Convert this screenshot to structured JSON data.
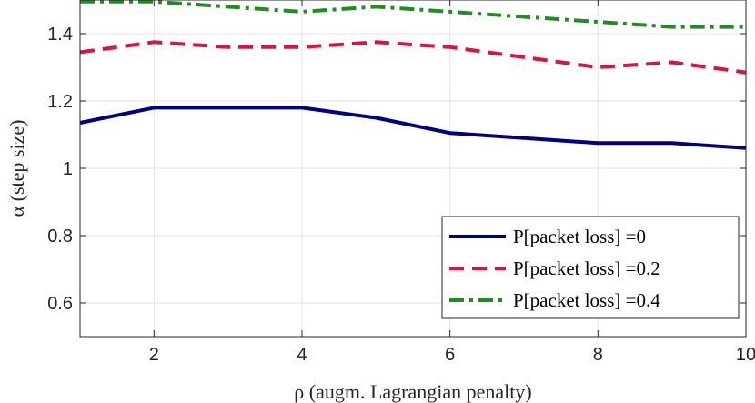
{
  "chart_data": {
    "type": "line",
    "title": "",
    "xlabel": "ρ (augm. Lagrangian penalty)",
    "ylabel": "α (step size)",
    "xlim": [
      1,
      10
    ],
    "ylim": [
      0.5,
      1.5
    ],
    "x_ticks": [
      2,
      4,
      6,
      8,
      10
    ],
    "x_tick_labels": [
      "2",
      "4",
      "6",
      "8",
      "10"
    ],
    "y_ticks": [
      0.6,
      0.8,
      1.0,
      1.2,
      1.4
    ],
    "y_tick_labels": [
      "0.6",
      "0.8",
      "1",
      "1.2",
      "1.4"
    ],
    "grid": true,
    "legend_position": "bottom-right",
    "x": [
      1,
      2,
      3,
      4,
      5,
      6,
      7,
      8,
      9,
      10
    ],
    "series": [
      {
        "name": "P[packet loss] =0",
        "color": "#000080",
        "style": "solid",
        "values": [
          1.135,
          1.18,
          1.18,
          1.18,
          1.15,
          1.105,
          1.09,
          1.075,
          1.075,
          1.06
        ]
      },
      {
        "name": "P[packet loss] =0.2",
        "color": "#dc143c",
        "style": "dashed",
        "values": [
          1.345,
          1.375,
          1.36,
          1.36,
          1.375,
          1.36,
          1.33,
          1.3,
          1.315,
          1.285
        ]
      },
      {
        "name": "P[packet loss] =0.4",
        "color": "#228b22",
        "style": "dashdot",
        "values": [
          1.495,
          1.495,
          1.48,
          1.465,
          1.48,
          1.465,
          1.45,
          1.435,
          1.42,
          1.42
        ]
      }
    ]
  }
}
